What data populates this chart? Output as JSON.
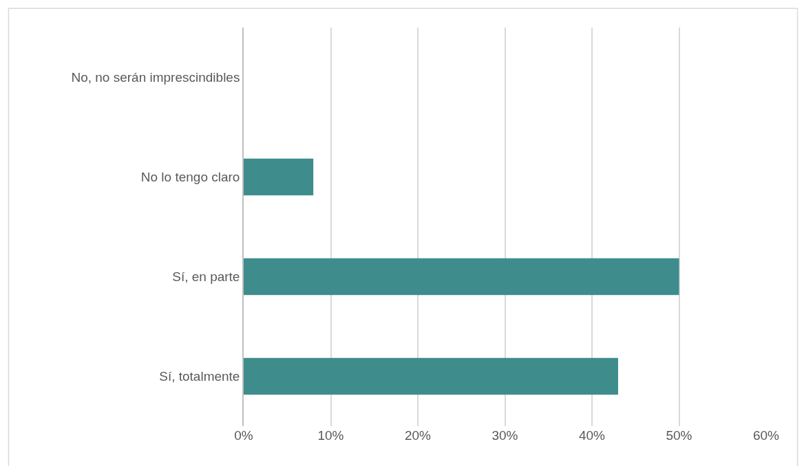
{
  "chart_data": {
    "type": "bar",
    "orientation": "horizontal",
    "categories": [
      "No, no serán imprescindibles",
      "No lo tengo claro",
      "Sí, en parte",
      "Sí, totalmente"
    ],
    "values": [
      0,
      8,
      50,
      43
    ],
    "color": "#3e8c8c",
    "xlim": [
      0,
      60
    ],
    "xticks": [
      {
        "value": 0,
        "label": "0%"
      },
      {
        "value": 10,
        "label": "10%"
      },
      {
        "value": 20,
        "label": "20%"
      },
      {
        "value": 30,
        "label": "30%"
      },
      {
        "value": 40,
        "label": "40%"
      },
      {
        "value": 50,
        "label": "50%"
      },
      {
        "value": 60,
        "label": "60%"
      }
    ],
    "grid": "x"
  }
}
